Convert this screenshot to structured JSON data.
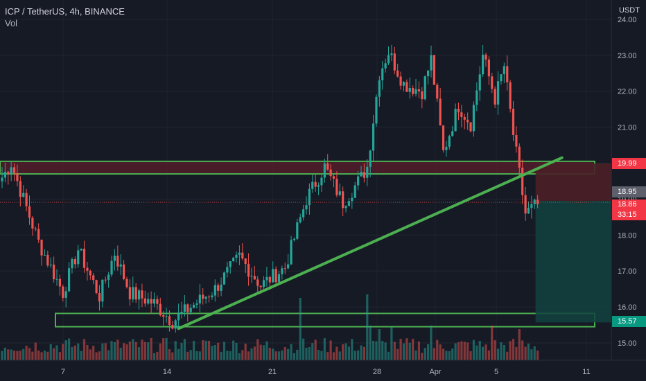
{
  "header": {
    "symbol_line": "ICP / TetherUS, 4h, BINANCE",
    "indicator": "Vol"
  },
  "axis": {
    "unit": "USDT"
  },
  "price_badges": {
    "resistance_price": "19.99",
    "previous_close": "18.95",
    "last_price": "18.86",
    "countdown": "33:15",
    "support_price": "15.57"
  },
  "colors": {
    "background": "#161a25",
    "up": "#26a69a",
    "down": "#ef5350",
    "zone_outline": "#4caf50",
    "trendline": "#4caf50",
    "resistance_fill": "#5a1f2b",
    "target_fill": "#12433f",
    "stop_fill": "#4a1f27"
  },
  "chart_data": {
    "type": "candlestick",
    "title": "ICP / TetherUS, 4h, BINANCE",
    "ylabel": "USDT",
    "ylim": [
      14.55,
      24.05
    ],
    "yticks": [
      "15.00",
      "16.00",
      "17.00",
      "18.00",
      "19.00",
      "20.00",
      "21.00",
      "22.00",
      "23.00",
      "24.00"
    ],
    "x_tick_labels": [
      "7",
      "14",
      "21",
      "28",
      "Apr",
      "5",
      "11"
    ],
    "anchors": [
      {
        "bar": 0,
        "price": 19.6
      },
      {
        "bar": 3,
        "price": 20.0
      },
      {
        "bar": 7,
        "price": 19.0
      },
      {
        "bar": 12,
        "price": 17.8
      },
      {
        "bar": 20,
        "price": 16.4
      },
      {
        "bar": 25,
        "price": 17.6
      },
      {
        "bar": 32,
        "price": 16.3
      },
      {
        "bar": 37,
        "price": 17.5
      },
      {
        "bar": 42,
        "price": 16.4
      },
      {
        "bar": 50,
        "price": 16.1
      },
      {
        "bar": 56,
        "price": 15.6
      },
      {
        "bar": 62,
        "price": 16.0
      },
      {
        "bar": 70,
        "price": 16.5
      },
      {
        "bar": 78,
        "price": 17.4
      },
      {
        "bar": 85,
        "price": 16.6
      },
      {
        "bar": 93,
        "price": 17.1
      },
      {
        "bar": 100,
        "price": 19.0
      },
      {
        "bar": 106,
        "price": 19.9
      },
      {
        "bar": 112,
        "price": 18.9
      },
      {
        "bar": 118,
        "price": 19.6
      },
      {
        "bar": 120,
        "price": 19.9
      },
      {
        "bar": 124,
        "price": 22.5
      },
      {
        "bar": 127,
        "price": 23.1
      },
      {
        "bar": 132,
        "price": 22.2
      },
      {
        "bar": 138,
        "price": 22.0
      },
      {
        "bar": 141,
        "price": 22.9
      },
      {
        "bar": 145,
        "price": 20.3
      },
      {
        "bar": 150,
        "price": 21.6
      },
      {
        "bar": 154,
        "price": 21.1
      },
      {
        "bar": 158,
        "price": 23.0
      },
      {
        "bar": 162,
        "price": 21.8
      },
      {
        "bar": 165,
        "price": 22.7
      },
      {
        "bar": 168,
        "price": 20.8
      },
      {
        "bar": 172,
        "price": 18.6
      },
      {
        "bar": 176,
        "price": 18.86
      }
    ],
    "volume_spikes": [
      {
        "bar": 98,
        "value": 1.8
      },
      {
        "bar": 120,
        "value": 1.9
      },
      {
        "bar": 121,
        "value": 1.0
      },
      {
        "bar": 124,
        "value": 0.9
      },
      {
        "bar": 128,
        "value": 0.95
      },
      {
        "bar": 141,
        "value": 1.0
      },
      {
        "bar": 161,
        "value": 1.0
      },
      {
        "bar": 170,
        "value": 0.9
      }
    ],
    "resistance_zone": {
      "low": 19.7,
      "high": 20.05
    },
    "support_zone": {
      "low": 15.45,
      "high": 15.82
    },
    "trendline": {
      "start": {
        "bar": 58,
        "price": 15.4
      },
      "end": {
        "bar": 184,
        "price": 20.15
      }
    },
    "position": {
      "entry": 18.95,
      "stop": 19.99,
      "target": 15.57
    }
  }
}
